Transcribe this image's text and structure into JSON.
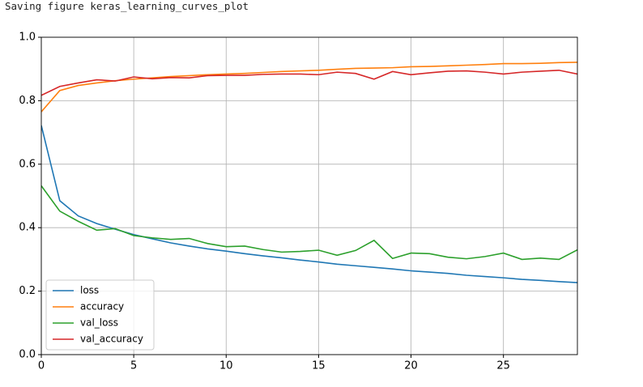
{
  "output_text": "Saving figure keras_learning_curves_plot",
  "chart_data": {
    "type": "line",
    "x": [
      0,
      1,
      2,
      3,
      4,
      5,
      6,
      7,
      8,
      9,
      10,
      11,
      12,
      13,
      14,
      15,
      16,
      17,
      18,
      19,
      20,
      21,
      22,
      23,
      24,
      25,
      26,
      27,
      28,
      29
    ],
    "series": [
      {
        "name": "loss",
        "color": "#1f77b4",
        "values": [
          0.722,
          0.485,
          0.437,
          0.413,
          0.395,
          0.378,
          0.365,
          0.352,
          0.342,
          0.333,
          0.326,
          0.318,
          0.311,
          0.305,
          0.298,
          0.292,
          0.285,
          0.28,
          0.275,
          0.27,
          0.264,
          0.26,
          0.256,
          0.25,
          0.246,
          0.242,
          0.237,
          0.234,
          0.23,
          0.227
        ]
      },
      {
        "name": "accuracy",
        "color": "#ff7f0e",
        "values": [
          0.765,
          0.832,
          0.848,
          0.856,
          0.863,
          0.868,
          0.872,
          0.876,
          0.879,
          0.882,
          0.884,
          0.886,
          0.889,
          0.892,
          0.894,
          0.896,
          0.899,
          0.902,
          0.903,
          0.904,
          0.907,
          0.908,
          0.91,
          0.912,
          0.914,
          0.917,
          0.917,
          0.918,
          0.92,
          0.921
        ]
      },
      {
        "name": "val_loss",
        "color": "#2ca02c",
        "values": [
          0.532,
          0.452,
          0.42,
          0.392,
          0.397,
          0.375,
          0.368,
          0.363,
          0.366,
          0.35,
          0.34,
          0.342,
          0.331,
          0.323,
          0.325,
          0.329,
          0.313,
          0.328,
          0.36,
          0.303,
          0.32,
          0.318,
          0.307,
          0.302,
          0.309,
          0.32,
          0.3,
          0.304,
          0.3,
          0.33
        ]
      },
      {
        "name": "val_accuracy",
        "color": "#d62728",
        "values": [
          0.817,
          0.845,
          0.856,
          0.866,
          0.862,
          0.875,
          0.869,
          0.873,
          0.872,
          0.879,
          0.88,
          0.88,
          0.883,
          0.884,
          0.884,
          0.882,
          0.89,
          0.886,
          0.868,
          0.892,
          0.882,
          0.888,
          0.893,
          0.894,
          0.89,
          0.884,
          0.89,
          0.893,
          0.896,
          0.884
        ]
      }
    ],
    "xlim": [
      0,
      29
    ],
    "xticks": [
      0,
      5,
      10,
      15,
      20,
      25
    ],
    "ylim": [
      0,
      1
    ],
    "yticks": [
      {
        "value": 0,
        "label": "0.0"
      },
      0.2,
      0.4,
      0.6,
      0.8,
      {
        "value": 1,
        "label": "1.0"
      }
    ],
    "grid": true,
    "legend": "lower left"
  }
}
